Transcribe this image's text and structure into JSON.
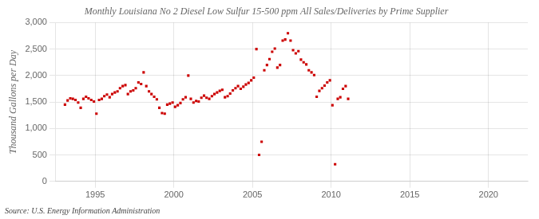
{
  "chart_data": {
    "type": "scatter",
    "title": "Monthly Louisiana No 2 Diesel Low Sulfur 15-500 ppm All Sales/Deliveries by Prime Supplier",
    "ylabel": "Thousand Gallons per Day",
    "annotations": [
      "Source: U.S. Energy Information Administration"
    ],
    "color": "#cc0000",
    "marker": "square",
    "grid": true,
    "xlim": [
      1992.5,
      2022.5
    ],
    "xticks": [
      1995,
      2000,
      2005,
      2010,
      2015,
      2020
    ],
    "ylim": [
      0,
      3000
    ],
    "yticks": [
      0,
      500,
      {
        "value": 1000,
        "label": "1,000"
      },
      {
        "value": 1500,
        "label": "1,500"
      },
      {
        "value": 2000,
        "label": "2,000"
      },
      {
        "value": 2500,
        "label": "2,500"
      },
      {
        "value": 3000,
        "label": "3,000"
      }
    ],
    "x": [
      1993.08,
      1993.25,
      1993.42,
      1993.58,
      1993.75,
      1993.92,
      1994.08,
      1994.25,
      1994.42,
      1994.58,
      1994.75,
      1994.92,
      1995.08,
      1995.25,
      1995.42,
      1995.58,
      1995.75,
      1995.92,
      1996.08,
      1996.25,
      1996.42,
      1996.58,
      1996.75,
      1996.92,
      1997.08,
      1997.25,
      1997.42,
      1997.58,
      1997.75,
      1997.92,
      1998.08,
      1998.25,
      1998.42,
      1998.58,
      1998.75,
      1998.92,
      1999.08,
      1999.25,
      1999.42,
      1999.58,
      1999.75,
      1999.92,
      2000.08,
      2000.25,
      2000.42,
      2000.58,
      2000.75,
      2000.92,
      2001.08,
      2001.25,
      2001.42,
      2001.58,
      2001.75,
      2001.92,
      2002.08,
      2002.25,
      2002.42,
      2002.58,
      2002.75,
      2002.92,
      2003.08,
      2003.25,
      2003.42,
      2003.58,
      2003.75,
      2003.92,
      2004.08,
      2004.25,
      2004.42,
      2004.58,
      2004.75,
      2004.92,
      2005.08,
      2005.25,
      2005.42,
      2005.58,
      2005.75,
      2005.92,
      2006.08,
      2006.25,
      2006.42,
      2006.58,
      2006.75,
      2006.92,
      2007.08,
      2007.25,
      2007.42,
      2007.58,
      2007.75,
      2007.92,
      2008.08,
      2008.25,
      2008.42,
      2008.58,
      2008.75,
      2008.92,
      2009.08,
      2009.25,
      2009.42,
      2009.58,
      2009.75,
      2009.92,
      2010.08,
      2010.25,
      2010.42,
      2010.58,
      2010.75,
      2010.92,
      2011.08
    ],
    "values": [
      1450,
      1530,
      1570,
      1560,
      1540,
      1490,
      1390,
      1560,
      1600,
      1570,
      1540,
      1510,
      1280,
      1540,
      1560,
      1610,
      1640,
      1590,
      1650,
      1680,
      1700,
      1760,
      1800,
      1820,
      1650,
      1700,
      1720,
      1760,
      1870,
      1840,
      2060,
      1800,
      1700,
      1650,
      1600,
      1550,
      1390,
      1290,
      1280,
      1450,
      1470,
      1490,
      1410,
      1440,
      1480,
      1550,
      1590,
      2000,
      1560,
      1490,
      1520,
      1510,
      1580,
      1620,
      1580,
      1560,
      1610,
      1650,
      1680,
      1710,
      1730,
      1590,
      1610,
      1660,
      1720,
      1760,
      1800,
      1750,
      1790,
      1830,
      1860,
      1910,
      1960,
      2500,
      500,
      750,
      2100,
      2200,
      2310,
      2450,
      2510,
      2150,
      2200,
      2660,
      2680,
      2800,
      2660,
      2480,
      2420,
      2460,
      2300,
      2250,
      2210,
      2100,
      2060,
      2010,
      1600,
      1710,
      1760,
      1810,
      1870,
      1910,
      1440,
      325,
      1560,
      1590,
      1750,
      1800,
      1560
    ]
  }
}
